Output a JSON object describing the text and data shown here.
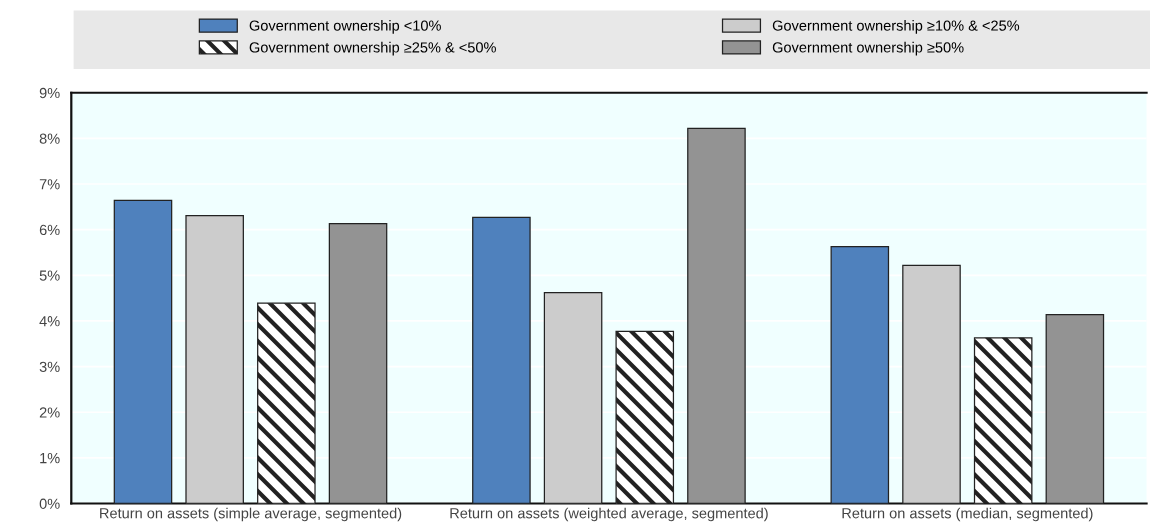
{
  "chart_data": {
    "type": "bar",
    "categories": [
      "Return on assets (simple average, segmented)",
      "Return on assets (weighted average, segmented)",
      "Return on assets (median, segmented)"
    ],
    "series": [
      {
        "name": "Government ownership <10%",
        "color": "#4f81bd",
        "values": [
          6.64,
          6.27,
          5.63
        ]
      },
      {
        "name": "Government ownership ≥10% & <25%",
        "color": "#cccccc",
        "values": [
          6.31,
          4.62,
          5.22
        ]
      },
      {
        "name": "Government ownership ≥25% & <50%",
        "color": "#222222",
        "values": [
          4.39,
          3.77,
          3.63
        ]
      },
      {
        "name": "Government ownership ≥50%",
        "color": "#939393",
        "values": [
          6.13,
          8.22,
          4.14
        ]
      }
    ],
    "ylim": [
      0,
      9
    ],
    "yticks": [
      {
        "value": 0,
        "label": "0%"
      },
      {
        "value": 1,
        "label": "1%"
      },
      {
        "value": 2,
        "label": "2%"
      },
      {
        "value": 3,
        "label": "3%"
      },
      {
        "value": 4,
        "label": "4%"
      },
      {
        "value": 5,
        "label": "5%"
      },
      {
        "value": 6,
        "label": "6%"
      },
      {
        "value": 7,
        "label": "7%"
      },
      {
        "value": 8,
        "label": "8%"
      },
      {
        "value": 9,
        "label": "9%"
      }
    ],
    "grid": "y",
    "legend": "top"
  }
}
